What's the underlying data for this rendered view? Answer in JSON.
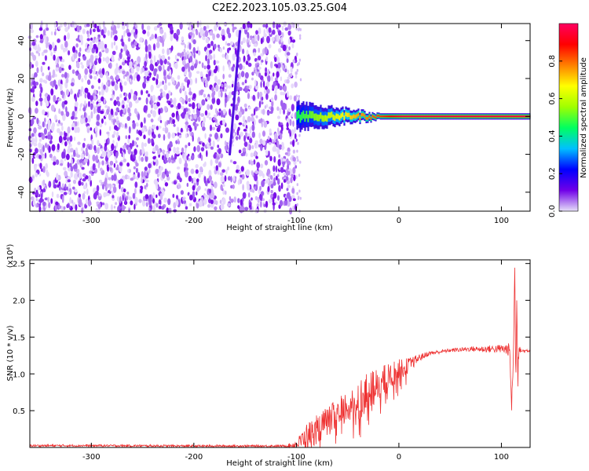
{
  "title": "C2E2.2023.105.03.25.G04",
  "chart_data": [
    {
      "type": "heatmap",
      "xlabel": "Height of straight line (km)",
      "ylabel": "Frequency (Hz)",
      "xlim": [
        -360,
        128
      ],
      "ylim": [
        -50,
        49
      ],
      "xticks": [
        -300,
        -200,
        -100,
        0,
        100
      ],
      "yticks": [
        -40,
        -20,
        0,
        20,
        40
      ],
      "colorbar": {
        "label": "Normalized spectral amplitude",
        "range": [
          0.0,
          1.0
        ],
        "ticks": [
          0.0,
          0.2,
          0.4,
          0.6,
          0.8
        ],
        "colormap": [
          "#e6e0f8",
          "#7000e8",
          "#0000ff",
          "#00c0ff",
          "#00ff60",
          "#a0ff00",
          "#ffff00",
          "#ff8000",
          "#ff0000",
          "#ff0060"
        ]
      },
      "features": {
        "noise_region_x": [
          -360,
          -100
        ],
        "noise_amplitude": 0.1,
        "streak": {
          "x": [
            -165,
            -155
          ],
          "y": [
            -20,
            45
          ],
          "amplitude": 0.1
        },
        "signal_x": [
          -100,
          128
        ],
        "signal_frequency_hz": 0,
        "signal_amplitude_start": 0.45,
        "signal_amplitude_end": 0.95
      }
    },
    {
      "type": "line",
      "xlabel": "Height of straight line (km)",
      "ylabel": "SNR (10 * v/v)",
      "y_multiplier": "(x10⁴)",
      "xlim": [
        -360,
        128
      ],
      "ylim": [
        0,
        25500
      ],
      "xticks": [
        -300,
        -200,
        -100,
        0,
        100
      ],
      "yticks": [
        5000,
        10000,
        15000,
        20000,
        25000
      ],
      "ytick_labels": [
        "0.5",
        "1.0",
        "1.5",
        "2.0",
        "2.5"
      ],
      "color": "#ee3333",
      "series": [
        {
          "x": [
            -360,
            -300,
            -200,
            -110,
            -100,
            -90,
            -80,
            -70,
            -60,
            -50,
            -40,
            -30,
            -20,
            -10,
            0,
            10,
            20,
            30,
            40,
            50,
            60,
            70,
            80,
            90,
            100,
            108,
            110,
            112,
            113,
            114,
            115,
            116,
            117,
            118,
            120,
            128
          ],
          "y": [
            250,
            250,
            200,
            200,
            400,
            1500,
            2500,
            3500,
            4500,
            5500,
            6500,
            7500,
            8500,
            9500,
            10500,
            11200,
            12200,
            12800,
            13000,
            13200,
            13300,
            13400,
            13350,
            13400,
            13400,
            13300,
            5500,
            14000,
            25500,
            9000,
            21000,
            11000,
            13000,
            13300,
            13100,
            13200
          ],
          "noise": [
            150,
            150,
            150,
            150,
            600,
            1800,
            2000,
            2000,
            2200,
            2500,
            2800,
            2600,
            2400,
            2000,
            1500,
            1000,
            500,
            300,
            250,
            250,
            300,
            350,
            400,
            500,
            600,
            900,
            800,
            1500,
            0,
            1500,
            1500,
            1500,
            800,
            400,
            300,
            250
          ]
        }
      ]
    }
  ]
}
